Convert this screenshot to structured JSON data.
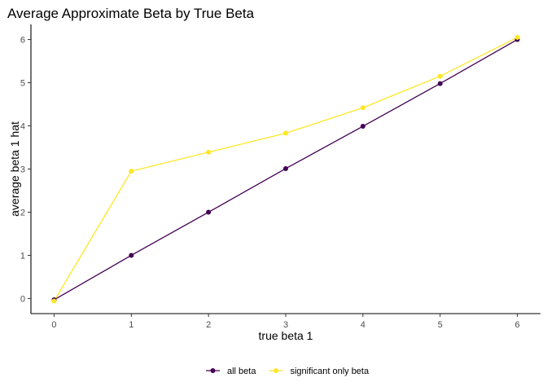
{
  "chart_data": {
    "type": "line",
    "title": "Average Approximate Beta by True Beta",
    "xlabel": "true beta 1",
    "ylabel": "average beta 1 hat",
    "x": [
      0,
      1,
      2,
      3,
      4,
      5,
      6
    ],
    "xlim": [
      -0.3,
      6.3
    ],
    "ylim": [
      -0.35,
      6.35
    ],
    "xticks": [
      0,
      1,
      2,
      3,
      4,
      5,
      6
    ],
    "yticks": [
      0,
      1,
      2,
      3,
      4,
      5,
      6
    ],
    "grid": false,
    "legend_position": "bottom",
    "series": [
      {
        "name": "all beta",
        "color": "#440154",
        "values": [
          -0.03,
          1.0,
          2.0,
          3.01,
          3.99,
          4.98,
          6.0
        ]
      },
      {
        "name": "significant only beta",
        "color": "#fde725",
        "values": [
          -0.06,
          2.95,
          3.39,
          3.83,
          4.42,
          5.15,
          6.05
        ]
      }
    ]
  }
}
